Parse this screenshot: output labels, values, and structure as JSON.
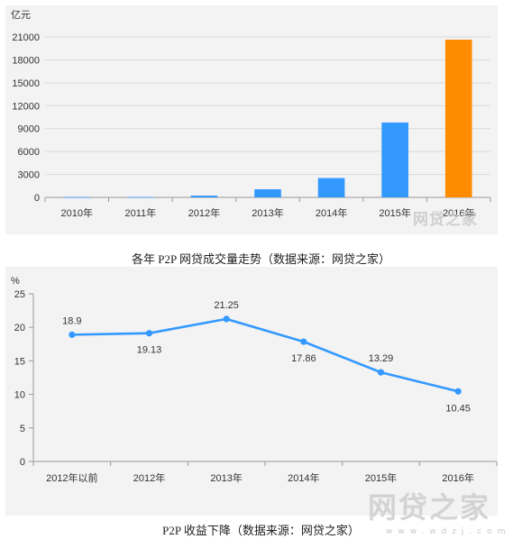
{
  "chart_data": [
    {
      "type": "bar",
      "unit": "亿元",
      "categories": [
        "2010年",
        "2011年",
        "2012年",
        "2013年",
        "2014年",
        "2015年",
        "2016年"
      ],
      "values": [
        30,
        50,
        230,
        1060,
        2530,
        9800,
        20640
      ],
      "ylim": [
        0,
        21000
      ],
      "yticks": [
        0,
        3000,
        6000,
        9000,
        12000,
        15000,
        18000,
        21000
      ],
      "colors": [
        "#3399ff",
        "#3399ff",
        "#3399ff",
        "#3399ff",
        "#3399ff",
        "#3399ff",
        "#ff8c00"
      ],
      "grid": true,
      "caption": "各年 P2P 网贷成交量走势（数据来源：网贷之家）"
    },
    {
      "type": "line",
      "unit": "%",
      "categories": [
        "2012年以前",
        "2012年",
        "2013年",
        "2014年",
        "2015年",
        "2016年"
      ],
      "values": [
        18.9,
        19.13,
        21.25,
        17.86,
        13.29,
        10.45
      ],
      "data_labels": [
        "18.9",
        "19.13",
        "21.25",
        "17.86",
        "13.29",
        "10.45"
      ],
      "ylim": [
        0,
        25
      ],
      "yticks": [
        0,
        5,
        10,
        15,
        20,
        25
      ],
      "color": "#3399ff",
      "grid": false,
      "caption": "P2P 收益下降（数据来源：网贷之家）"
    }
  ],
  "watermarks": {
    "top": "网贷之家",
    "bottom": "网贷之家",
    "bottom_sub": "www.wdzj.com"
  }
}
